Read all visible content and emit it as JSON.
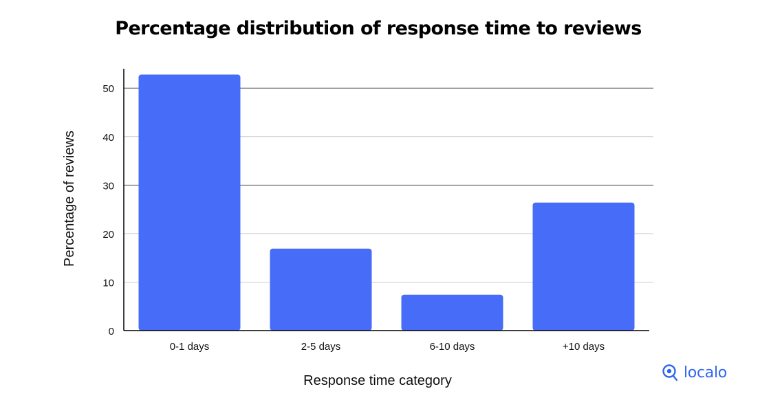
{
  "chart_data": {
    "type": "bar",
    "title": "Percentage distribution of response time to reviews",
    "xlabel": "Response time category",
    "ylabel": "Percentage of reviews",
    "categories": [
      "0-1 days",
      "2-5 days",
      "6-10 days",
      "+10 days"
    ],
    "values": [
      52.8,
      16.9,
      7.4,
      26.4
    ],
    "ylim": [
      0,
      55
    ],
    "yticks": [
      0,
      10,
      20,
      30,
      40,
      50
    ],
    "grid": true,
    "bar_color": "#466cf8",
    "grid_colors": {
      "major": "#555555",
      "minor": "#cccccc"
    }
  },
  "brand": {
    "name": "localo",
    "icon": "map-pin-icon",
    "color": "#2f66f0"
  }
}
